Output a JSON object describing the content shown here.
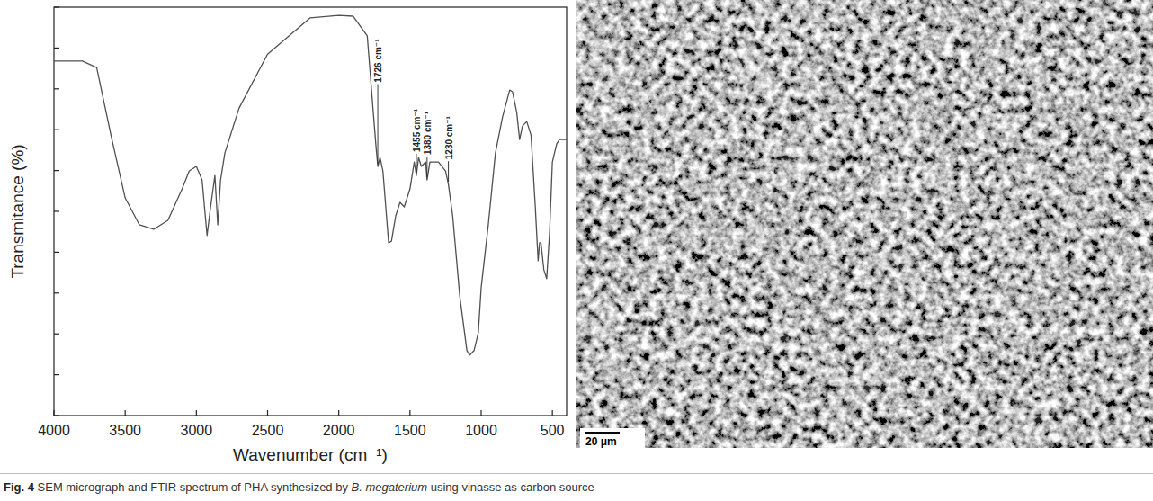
{
  "chart_data": {
    "type": "line",
    "x_label": "Wavenumber (cm⁻¹)",
    "y_label": "Transmitance (%)",
    "x": [
      4000,
      3800,
      3700,
      3600,
      3500,
      3400,
      3300,
      3200,
      3100,
      3050,
      3000,
      2960,
      2925,
      2900,
      2870,
      2850,
      2830,
      2800,
      2700,
      2500,
      2200,
      2000,
      1900,
      1800,
      1760,
      1740,
      1726,
      1710,
      1690,
      1650,
      1630,
      1600,
      1570,
      1540,
      1500,
      1470,
      1455,
      1440,
      1420,
      1390,
      1380,
      1360,
      1300,
      1250,
      1230,
      1200,
      1150,
      1100,
      1080,
      1050,
      1020,
      1000,
      950,
      900,
      850,
      800,
      780,
      750,
      730,
      710,
      680,
      650,
      620,
      600,
      590,
      580,
      560,
      540,
      520,
      500,
      470,
      450,
      400
    ],
    "values": [
      86.8,
      86.8,
      85.2,
      68.7,
      53.3,
      46.7,
      45.6,
      47.8,
      55.5,
      59.9,
      61.0,
      57.7,
      44.1,
      51.1,
      58.8,
      46.7,
      57.7,
      64.3,
      75.3,
      88.5,
      97.4,
      98.0,
      97.8,
      93.0,
      75.3,
      66.5,
      61.0,
      63.2,
      59.9,
      42.3,
      42.7,
      48.9,
      52.2,
      51.1,
      55.5,
      62.1,
      58.8,
      63.2,
      61.0,
      62.1,
      57.7,
      62.1,
      62.1,
      59.9,
      56.6,
      48.9,
      29.1,
      15.9,
      14.8,
      15.9,
      20.3,
      31.3,
      46.7,
      64.3,
      73.1,
      79.7,
      79.3,
      74.2,
      67.6,
      70.9,
      72.0,
      68.7,
      51.1,
      37.9,
      42.3,
      42.3,
      35.7,
      33.5,
      44.5,
      62.1,
      66.5,
      67.6,
      67.6
    ],
    "color": "#505050",
    "xlim": [
      4000,
      400
    ],
    "xticks": [
      4000,
      3500,
      3000,
      2500,
      2000,
      1500,
      1000,
      500
    ],
    "ylim": [
      0,
      100
    ],
    "yticks": [
      0,
      10,
      20,
      30,
      40,
      50,
      60,
      70,
      80,
      90,
      100
    ],
    "tick_labels": "x",
    "grid": false,
    "annotations": [
      {
        "text": "1726 cm⁻¹",
        "x": 1726
      },
      {
        "text": "1455 cm⁻¹",
        "x": 1455
      },
      {
        "text": "1380 cm⁻¹",
        "x": 1380
      },
      {
        "text": "1230 cm⁻¹",
        "x": 1230
      }
    ]
  },
  "sem_image": {
    "scale_bar": "20 μm"
  },
  "caption": {
    "label": "Fig. 4",
    "before": "SEM micrograph and FTIR spectrum of PHA synthesized by",
    "species": "B. megaterium",
    "after": "using vinasse as carbon source"
  }
}
